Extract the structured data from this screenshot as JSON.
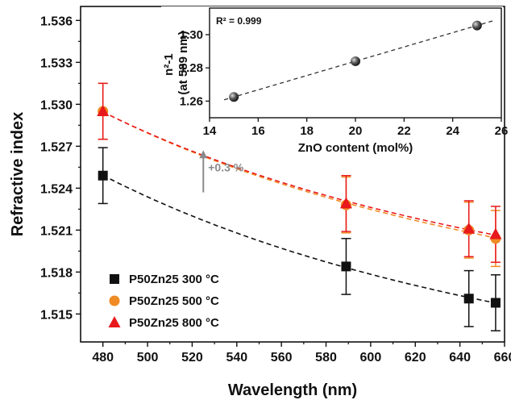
{
  "chart_data": [
    {
      "type": "scatter",
      "xlabel": "Wavelength (nm)",
      "ylabel": "Refractive index",
      "xlim": [
        470,
        660
      ],
      "ylim": [
        1.513,
        1.537
      ],
      "xticks": [
        480,
        500,
        520,
        540,
        560,
        580,
        600,
        620,
        640,
        660
      ],
      "yticks": [
        1.515,
        1.518,
        1.521,
        1.524,
        1.527,
        1.53,
        1.533,
        1.536
      ],
      "grid": false,
      "legend_position": "bottom-left",
      "series": [
        {
          "name": "P50Zn25 300 °C",
          "marker": "square",
          "color": "#111111",
          "x": [
            480,
            589,
            644,
            656
          ],
          "y": [
            1.5249,
            1.5184,
            1.5161,
            1.5158
          ],
          "err": [
            0.002,
            0.002,
            0.002,
            0.002
          ],
          "fit_line": "dashed"
        },
        {
          "name": "P50Zn25 500 °C",
          "marker": "circle",
          "color": "#f08a24",
          "x": [
            480,
            589,
            644,
            656
          ],
          "y": [
            1.5295,
            1.5228,
            1.521,
            1.5204
          ],
          "err": [
            0.002,
            0.002,
            0.002,
            0.002
          ],
          "fit_line": "dashed"
        },
        {
          "name": "P50Zn25 800 °C",
          "marker": "triangle",
          "color": "#e8191b",
          "x": [
            480,
            589,
            644,
            656
          ],
          "y": [
            1.5295,
            1.5229,
            1.5211,
            1.5207
          ],
          "err": [
            0.002,
            0.002,
            0.002,
            0.002
          ],
          "fit_line": "dashed"
        }
      ],
      "annotations": [
        {
          "text": "+0.3 %",
          "x": 525,
          "y": 1.5255,
          "arrow": "up",
          "color": "#8a8a8a"
        }
      ]
    },
    {
      "type": "scatter",
      "xlabel": "ZnO content (mol%)",
      "ylabel_lines": [
        "n²-1",
        "(at 589 nm)"
      ],
      "xlim": [
        14,
        26
      ],
      "ylim": [
        1.25,
        1.316
      ],
      "xticks": [
        14,
        16,
        18,
        20,
        22,
        24,
        26
      ],
      "yticks": [
        1.26,
        1.28,
        1.3
      ],
      "grid": false,
      "x": [
        15,
        20,
        25
      ],
      "y": [
        1.2625,
        1.284,
        1.3055
      ],
      "fit_line": "dashed",
      "fit_label": "R² = 0.999"
    }
  ]
}
